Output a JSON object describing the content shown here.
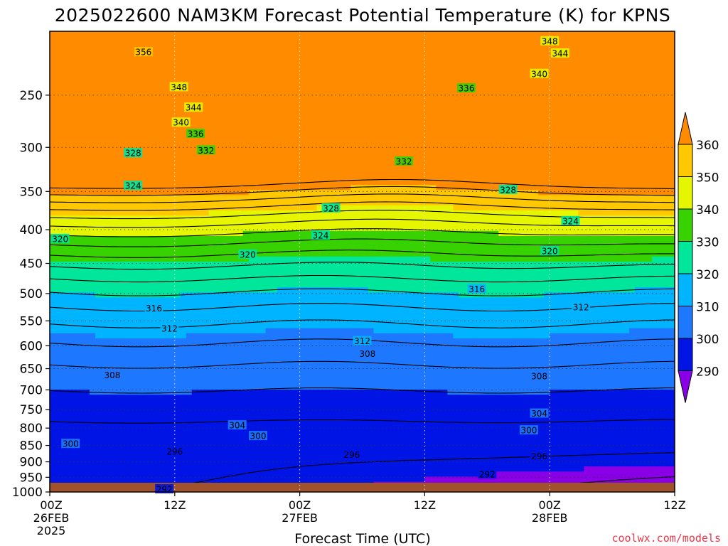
{
  "chart_data": {
    "type": "heatmap",
    "title": "2025022600 NAM3KM Forecast Potential Temperature (K) for KPNS",
    "xlabel": "Forecast Time (UTC)",
    "ylabel": "",
    "y_axis": {
      "ticks": [
        250,
        300,
        350,
        400,
        450,
        500,
        550,
        600,
        650,
        700,
        750,
        800,
        850,
        900,
        950,
        1000
      ],
      "range": [
        1000,
        200
      ],
      "scale": "log-pressure",
      "grid": "dotted"
    },
    "x_axis": {
      "ticks": [
        {
          "line1": "00Z",
          "line2": "26FEB",
          "line3": "2025"
        },
        {
          "line1": "12Z",
          "line2": "",
          "line3": ""
        },
        {
          "line1": "00Z",
          "line2": "27FEB",
          "line3": ""
        },
        {
          "line1": "12Z",
          "line2": "",
          "line3": ""
        },
        {
          "line1": "00Z",
          "line2": "28FEB",
          "line3": ""
        },
        {
          "line1": "12Z",
          "line2": "",
          "line3": ""
        }
      ],
      "range_hours": [
        0,
        60
      ],
      "grid": "dotted"
    },
    "colorbar": {
      "levels": [
        290,
        300,
        310,
        320,
        330,
        340,
        350,
        360
      ],
      "colors": [
        "#8a00e6",
        "#0014e6",
        "#1e78ff",
        "#00b4ff",
        "#00e69b",
        "#37d200",
        "#e6f500",
        "#ffc800",
        "#ff8c00"
      ],
      "extend": "both"
    },
    "contour_interval": 4,
    "contour_labels": [
      {
        "value": 356,
        "h": 9,
        "p": 215
      },
      {
        "value": 348,
        "h": 12.4,
        "p": 243
      },
      {
        "value": 344,
        "h": 13.8,
        "p": 261
      },
      {
        "value": 340,
        "h": 12.6,
        "p": 275
      },
      {
        "value": 336,
        "h": 14,
        "p": 286
      },
      {
        "value": 332,
        "h": 15,
        "p": 303
      },
      {
        "value": 328,
        "h": 8,
        "p": 306
      },
      {
        "value": 324,
        "h": 8,
        "p": 343
      },
      {
        "value": 320,
        "h": 1,
        "p": 413
      },
      {
        "value": 320,
        "h": 19,
        "p": 436
      },
      {
        "value": 316,
        "h": 10,
        "p": 526
      },
      {
        "value": 312,
        "h": 11.5,
        "p": 565
      },
      {
        "value": 308,
        "h": 6,
        "p": 665
      },
      {
        "value": 304,
        "h": 18,
        "p": 792
      },
      {
        "value": 300,
        "h": 2,
        "p": 845
      },
      {
        "value": 300,
        "h": 20,
        "p": 822
      },
      {
        "value": 296,
        "h": 12,
        "p": 868
      },
      {
        "value": 296,
        "h": 29,
        "p": 878
      },
      {
        "value": 292,
        "h": 11,
        "p": 990
      },
      {
        "value": 328,
        "h": 27,
        "p": 371
      },
      {
        "value": 324,
        "h": 26,
        "p": 408
      },
      {
        "value": 312,
        "h": 30,
        "p": 590
      },
      {
        "value": 308,
        "h": 30.5,
        "p": 617
      },
      {
        "value": 332,
        "h": 34,
        "p": 315
      },
      {
        "value": 316,
        "h": 41,
        "p": 492
      },
      {
        "value": 328,
        "h": 44,
        "p": 348
      },
      {
        "value": 336,
        "h": 40,
        "p": 244
      },
      {
        "value": 324,
        "h": 50,
        "p": 388
      },
      {
        "value": 320,
        "h": 48,
        "p": 431
      },
      {
        "value": 312,
        "h": 51,
        "p": 524
      },
      {
        "value": 308,
        "h": 47,
        "p": 667
      },
      {
        "value": 304,
        "h": 47,
        "p": 760
      },
      {
        "value": 300,
        "h": 46,
        "p": 806
      },
      {
        "value": 296,
        "h": 47,
        "p": 882
      },
      {
        "value": 292,
        "h": 42,
        "p": 940
      },
      {
        "value": 348,
        "h": 48,
        "p": 207
      },
      {
        "value": 344,
        "h": 49,
        "p": 216
      },
      {
        "value": 340,
        "h": 47,
        "p": 232
      }
    ]
  },
  "credit": "coolwx.com/models"
}
